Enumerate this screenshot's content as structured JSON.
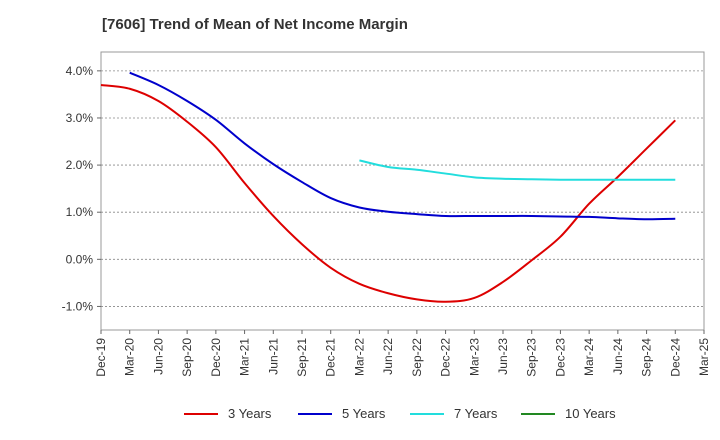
{
  "title": "[7606]  Trend of Mean of Net Income Margin",
  "chart_data": {
    "type": "line",
    "title": "[7606]  Trend of Mean of Net Income Margin",
    "xlabel": "",
    "ylabel": "",
    "x_ticks": [
      "Dec-19",
      "Mar-20",
      "Jun-20",
      "Sep-20",
      "Dec-20",
      "Mar-21",
      "Jun-21",
      "Sep-21",
      "Dec-21",
      "Mar-22",
      "Jun-22",
      "Sep-22",
      "Dec-22",
      "Mar-23",
      "Jun-23",
      "Sep-23",
      "Dec-23",
      "Mar-24",
      "Jun-24",
      "Sep-24",
      "Dec-24",
      "Mar-25"
    ],
    "y_ticks": [
      "4.0%",
      "3.0%",
      "2.0%",
      "1.0%",
      "0.0%",
      "-1.0%"
    ],
    "y_tick_values": [
      4.0,
      3.0,
      2.0,
      1.0,
      0.0,
      -1.0
    ],
    "ylim": [
      -1.5,
      4.4
    ],
    "grid": "horizontal dashed",
    "legend_position": "bottom",
    "series": [
      {
        "name": "3 Years",
        "color": "#dd0000",
        "values": [
          3.7,
          3.62,
          3.36,
          2.92,
          2.38,
          1.62,
          0.92,
          0.32,
          -0.18,
          -0.52,
          -0.72,
          -0.85,
          -0.9,
          -0.82,
          -0.48,
          -0.02,
          0.48,
          1.18,
          1.75,
          2.35,
          2.95,
          null
        ]
      },
      {
        "name": "5 Years",
        "color": "#0000cc",
        "values": [
          null,
          3.96,
          3.7,
          3.36,
          2.96,
          2.46,
          2.02,
          1.64,
          1.3,
          1.1,
          1.01,
          0.96,
          0.92,
          0.92,
          0.92,
          0.92,
          0.91,
          0.9,
          0.87,
          0.85,
          0.86,
          null
        ]
      },
      {
        "name": "7 Years",
        "color": "#22dddd",
        "values": [
          null,
          null,
          null,
          null,
          null,
          null,
          null,
          null,
          null,
          2.1,
          1.96,
          1.9,
          1.82,
          1.74,
          1.71,
          1.7,
          1.69,
          1.69,
          1.69,
          1.69,
          1.69,
          null
        ]
      },
      {
        "name": "10 Years",
        "color": "#228822",
        "values": [
          null,
          null,
          null,
          null,
          null,
          null,
          null,
          null,
          null,
          null,
          null,
          null,
          null,
          null,
          null,
          null,
          null,
          null,
          null,
          null,
          null,
          null
        ]
      }
    ]
  }
}
